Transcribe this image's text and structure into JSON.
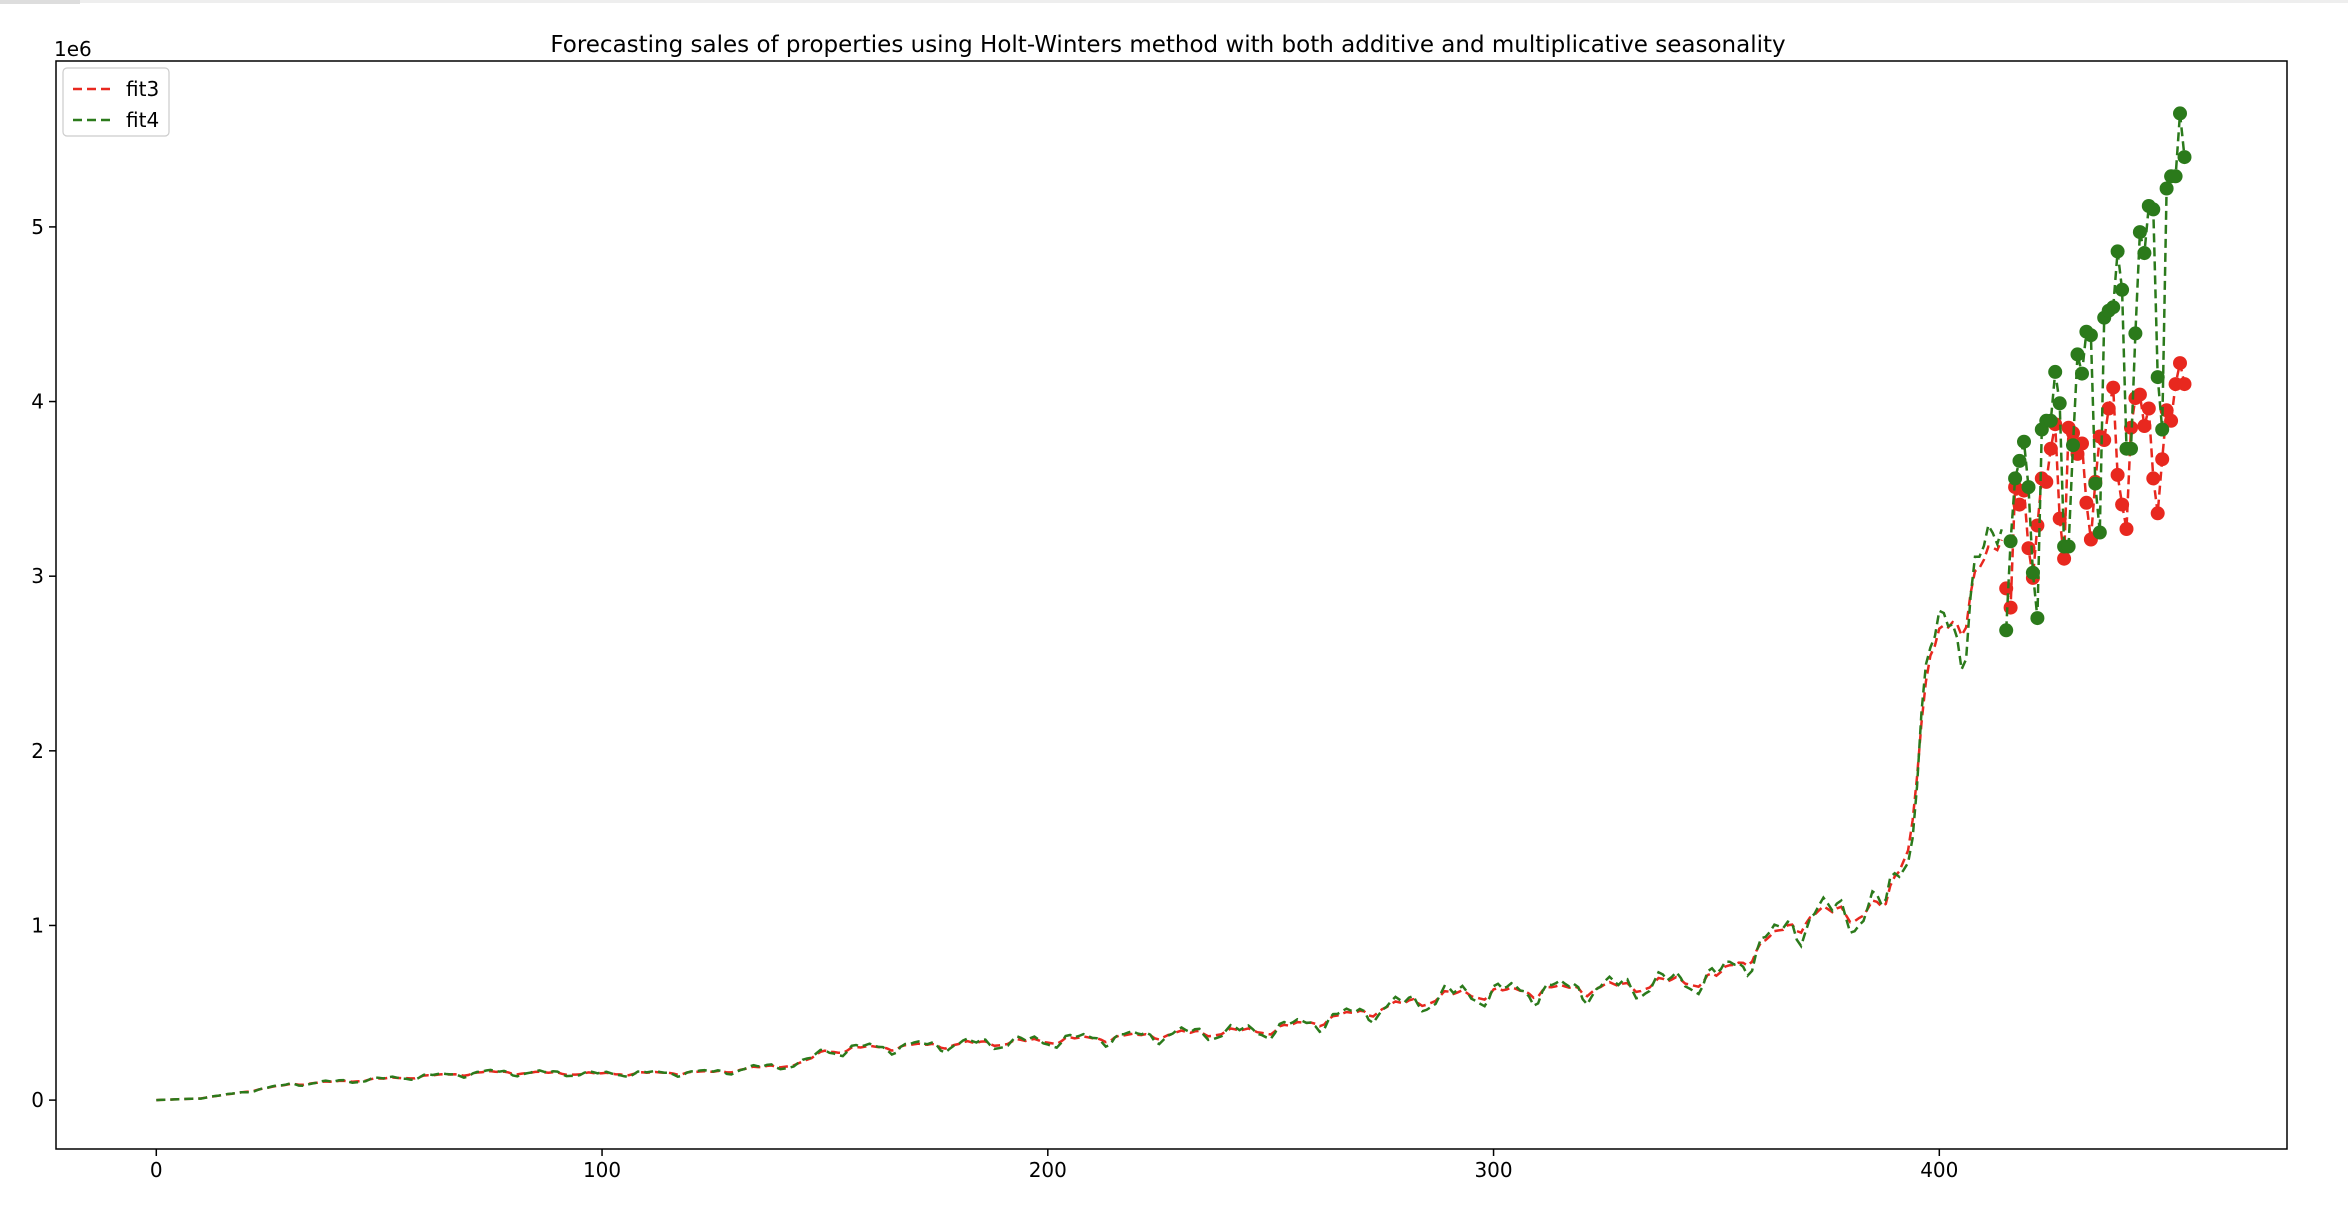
{
  "chart_data": {
    "type": "line",
    "title": "Forecasting sales of properties using Holt-Winters method with both additive and multiplicative seasonality",
    "xlabel": "",
    "ylabel": "",
    "y_offset_text": "1e6",
    "xlim": [
      -22.5,
      478
    ],
    "ylim": [
      -0.28,
      5.95
    ],
    "x_ticks": [
      0,
      100,
      200,
      300,
      400
    ],
    "x_tick_labels": [
      "0",
      "100",
      "200",
      "300",
      "400"
    ],
    "y_ticks": [
      0,
      1,
      2,
      3,
      4,
      5
    ],
    "y_tick_labels": [
      "0",
      "1",
      "2",
      "3",
      "4",
      "5"
    ],
    "legend_position": "top-left",
    "grid": false,
    "fitted_range": [
      0,
      414
    ],
    "forecast_range": [
      415,
      455
    ],
    "knots": [
      [
        0,
        0.0
      ],
      [
        10,
        0.01
      ],
      [
        18,
        0.04
      ],
      [
        30,
        0.09
      ],
      [
        50,
        0.12
      ],
      [
        75,
        0.16
      ],
      [
        100,
        0.15
      ],
      [
        125,
        0.16
      ],
      [
        145,
        0.21
      ],
      [
        150,
        0.28
      ],
      [
        160,
        0.3
      ],
      [
        200,
        0.34
      ],
      [
        230,
        0.38
      ],
      [
        250,
        0.4
      ],
      [
        270,
        0.5
      ],
      [
        290,
        0.6
      ],
      [
        310,
        0.63
      ],
      [
        330,
        0.65
      ],
      [
        350,
        0.7
      ],
      [
        360,
        0.88
      ],
      [
        370,
        1.05
      ],
      [
        388,
        1.1
      ],
      [
        393,
        1.5
      ],
      [
        398,
        2.5
      ],
      [
        405,
        2.85
      ],
      [
        414,
        3.15
      ]
    ],
    "series": [
      {
        "name": "fit3",
        "color": "#e8281f",
        "seasonal_amp": 0.06,
        "forecast": [
          2.93,
          2.82,
          3.51,
          3.41,
          3.49,
          3.16,
          2.99,
          3.29,
          3.56,
          3.54,
          3.73,
          3.87,
          3.33,
          3.1,
          3.85,
          3.82,
          3.7,
          3.76,
          3.42,
          3.21,
          3.54,
          3.8,
          3.78,
          3.96,
          4.08,
          3.58,
          3.41,
          3.27,
          3.85,
          4.02,
          4.04,
          3.86,
          3.96,
          3.56,
          3.36,
          3.67,
          3.95,
          3.89,
          4.1,
          4.22,
          4.1
        ]
      },
      {
        "name": "fit4",
        "color": "#2b7a1b",
        "seasonal_amp": 0.09,
        "forecast": [
          2.69,
          3.2,
          3.56,
          3.66,
          3.77,
          3.51,
          3.02,
          2.76,
          3.84,
          3.89,
          3.89,
          4.17,
          3.99,
          3.17,
          3.17,
          3.75,
          4.27,
          4.16,
          4.4,
          4.38,
          3.53,
          3.25,
          4.48,
          4.52,
          4.54,
          4.86,
          4.64,
          3.73,
          3.73,
          4.39,
          4.97,
          4.85,
          5.12,
          5.1,
          4.14,
          3.84,
          5.22,
          5.29,
          5.29,
          5.65,
          5.4
        ]
      }
    ]
  }
}
